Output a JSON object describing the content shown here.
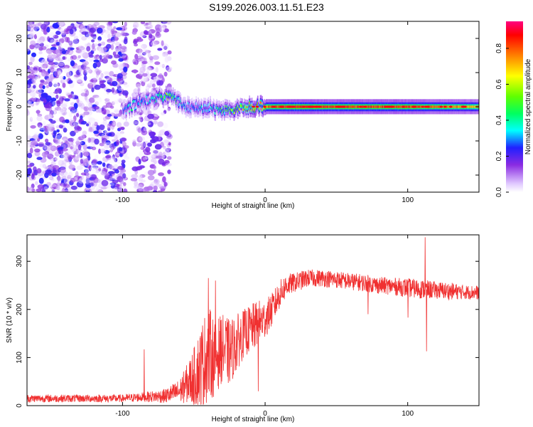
{
  "title": "S199.2026.003.11.51.E23",
  "colors": {
    "snr_line": "#f03030",
    "background": "#ffffff",
    "axis": "#000000"
  },
  "chart_data": [
    {
      "type": "heatmap",
      "name": "spectrogram",
      "xlabel": "Height of straight line (km)",
      "ylabel": "Frequency (Hz)",
      "xlim": [
        -167,
        150
      ],
      "ylim": [
        -25,
        25
      ],
      "x_ticks": [
        -100,
        0,
        100
      ],
      "x_tick_labels": [
        "-100",
        "0",
        "100"
      ],
      "y_ticks": [
        -20,
        -10,
        0,
        10,
        20
      ],
      "y_tick_labels": [
        "-20",
        "-10",
        "0",
        "10",
        "20"
      ],
      "description_series": [
        {
          "name": "noise_region_left",
          "x_range": [
            -167,
            -97
          ],
          "y_range": [
            -25,
            25
          ],
          "amplitude_range": [
            0.0,
            0.25
          ]
        },
        {
          "name": "noise_region_mid",
          "x_range": [
            -92,
            -67
          ],
          "y_range": [
            -25,
            25
          ],
          "amplitude_range": [
            0.0,
            0.2
          ]
        },
        {
          "name": "signal_track",
          "x": [
            -100,
            -95,
            -90,
            -85,
            -80,
            -75,
            -70,
            -65,
            -60,
            -55,
            -50,
            -45,
            -40,
            -35,
            -30,
            -25,
            -20,
            -15,
            -10,
            -5,
            0,
            10,
            20,
            40,
            60,
            80,
            100,
            120,
            150
          ],
          "y": [
            -2,
            0,
            1,
            2,
            2,
            3,
            3,
            3,
            1,
            0,
            0,
            -1,
            0,
            -1,
            -1,
            -1,
            -1,
            0,
            0,
            0,
            0,
            0,
            0,
            0,
            0,
            0,
            0,
            0,
            0
          ],
          "amplitude": [
            0.25,
            0.4,
            0.35,
            0.3,
            0.35,
            0.45,
            0.55,
            0.45,
            0.35,
            0.3,
            0.3,
            0.35,
            0.35,
            0.4,
            0.45,
            0.5,
            0.55,
            0.6,
            0.7,
            0.75,
            0.8,
            0.85,
            0.9,
            0.85,
            0.85,
            0.85,
            0.85,
            0.8,
            0.75
          ]
        }
      ],
      "colorbar": {
        "label": "Normalized spectral amplitude",
        "range": [
          0,
          0.95
        ],
        "ticks": [
          0.0,
          0.2,
          0.4,
          0.6,
          0.8
        ],
        "tick_labels": [
          "0.0",
          "0.2",
          "0.4",
          "0.6",
          "0.8"
        ]
      }
    },
    {
      "type": "line",
      "name": "snr",
      "xlabel": "Height of straight line (km)",
      "ylabel": "SNR (10 * v/v)",
      "xlim": [
        -167,
        150
      ],
      "ylim": [
        0,
        355
      ],
      "x_ticks": [
        -100,
        0,
        100
      ],
      "x_tick_labels": [
        "-100",
        "0",
        "100"
      ],
      "y_ticks": [
        0,
        100,
        200,
        300
      ],
      "y_tick_labels": [
        "0",
        "100",
        "200",
        "300"
      ],
      "envelope": {
        "x": [
          -167,
          -140,
          -120,
          -100,
          -85,
          -70,
          -60,
          -55,
          -50,
          -45,
          -40,
          -35,
          -30,
          -25,
          -20,
          -15,
          -10,
          -5,
          0,
          5,
          10,
          15,
          20,
          25,
          30,
          40,
          50,
          60,
          70,
          80,
          90,
          100,
          110,
          120,
          130,
          140,
          150
        ],
        "mean": [
          15,
          15,
          15,
          15,
          18,
          20,
          30,
          45,
          60,
          80,
          110,
          100,
          120,
          110,
          130,
          150,
          160,
          170,
          180,
          200,
          230,
          250,
          255,
          260,
          265,
          265,
          262,
          258,
          255,
          250,
          248,
          245,
          242,
          240,
          238,
          236,
          235
        ],
        "noise": [
          8,
          8,
          8,
          8,
          10,
          15,
          25,
          40,
          60,
          90,
          100,
          80,
          70,
          70,
          60,
          50,
          50,
          50,
          40,
          35,
          30,
          25,
          20,
          20,
          18,
          18,
          18,
          18,
          18,
          18,
          18,
          20,
          20,
          18,
          18,
          15,
          15
        ]
      },
      "spikes": [
        {
          "x": -85,
          "y": 117
        },
        {
          "x": -40,
          "y": 265
        },
        {
          "x": -35,
          "y": 260
        },
        {
          "x": -5,
          "y": 30
        },
        {
          "x": 72,
          "y": 190
        },
        {
          "x": 100,
          "y": 183
        },
        {
          "x": 112,
          "y": 350
        },
        {
          "x": 113,
          "y": 113
        }
      ]
    }
  ]
}
